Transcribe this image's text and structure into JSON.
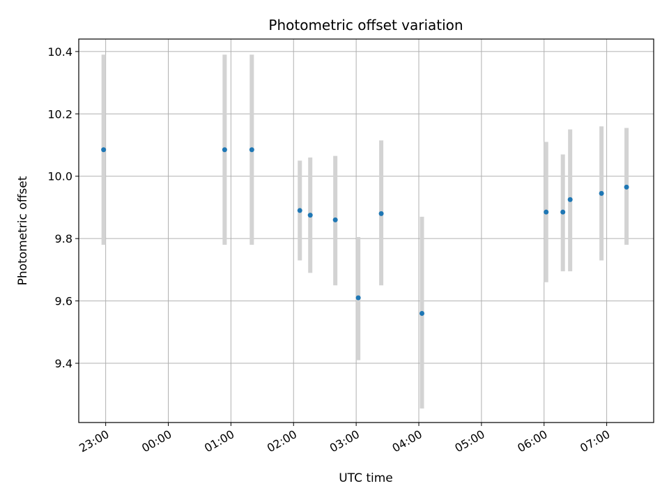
{
  "chart_data": {
    "type": "scatter",
    "title": "Photometric offset variation",
    "xlabel": "UTC time",
    "ylabel": "Photometric offset",
    "x_tick_labels": [
      "23:00",
      "00:00",
      "01:00",
      "02:00",
      "03:00",
      "04:00",
      "05:00",
      "06:00",
      "07:00"
    ],
    "x_tick_hours": [
      23,
      24,
      25,
      26,
      27,
      28,
      29,
      30,
      31
    ],
    "y_ticks": [
      9.4,
      9.6,
      9.8,
      10.0,
      10.2,
      10.4
    ],
    "y_tick_labels": [
      "9.4",
      "9.6",
      "9.8",
      "10.0",
      "10.2",
      "10.4"
    ],
    "xlim_hours": [
      22.57,
      31.75
    ],
    "ylim": [
      9.21,
      10.44
    ],
    "grid": true,
    "marker_color": "#1f77b4",
    "errorbar_color": "#d3d3d3",
    "points": [
      {
        "time": "22:58",
        "y": 10.085,
        "low": 9.78,
        "high": 10.39
      },
      {
        "time": "00:54",
        "y": 10.085,
        "low": 9.78,
        "high": 10.39
      },
      {
        "time": "01:20",
        "y": 10.085,
        "low": 9.78,
        "high": 10.39
      },
      {
        "time": "02:06",
        "y": 9.89,
        "low": 9.73,
        "high": 10.05
      },
      {
        "time": "02:16",
        "y": 9.875,
        "low": 9.69,
        "high": 10.06
      },
      {
        "time": "02:40",
        "y": 9.86,
        "low": 9.65,
        "high": 10.065
      },
      {
        "time": "03:02",
        "y": 9.61,
        "low": 9.41,
        "high": 9.805
      },
      {
        "time": "03:24",
        "y": 9.88,
        "low": 9.65,
        "high": 10.115
      },
      {
        "time": "04:03",
        "y": 9.56,
        "low": 9.255,
        "high": 9.87
      },
      {
        "time": "06:02",
        "y": 9.885,
        "low": 9.66,
        "high": 10.11
      },
      {
        "time": "06:18",
        "y": 9.885,
        "low": 9.695,
        "high": 10.07
      },
      {
        "time": "06:25",
        "y": 9.925,
        "low": 9.695,
        "high": 10.15
      },
      {
        "time": "06:55",
        "y": 9.945,
        "low": 9.73,
        "high": 10.16
      },
      {
        "time": "07:19",
        "y": 9.965,
        "low": 9.78,
        "high": 10.155
      }
    ]
  }
}
